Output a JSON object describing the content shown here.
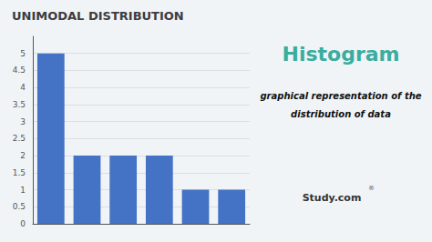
{
  "chart_data": {
    "type": "bar",
    "title": "UNIMODAL DISTRIBUTION",
    "annotations": [
      "Histogram",
      "graphical representation of the",
      "distribution of data",
      "Study.com",
      "®"
    ],
    "categories": [
      null,
      null,
      null,
      null,
      null,
      null
    ],
    "values": [
      5,
      2,
      2,
      2,
      1,
      1
    ],
    "color": "#4472C4",
    "ylim": [
      0,
      5.5
    ],
    "yticks": [
      0,
      0.5,
      1,
      1.5,
      2,
      2.5,
      3,
      3.5,
      4,
      4.5,
      5
    ],
    "grid": true,
    "tick_labels": "y"
  }
}
